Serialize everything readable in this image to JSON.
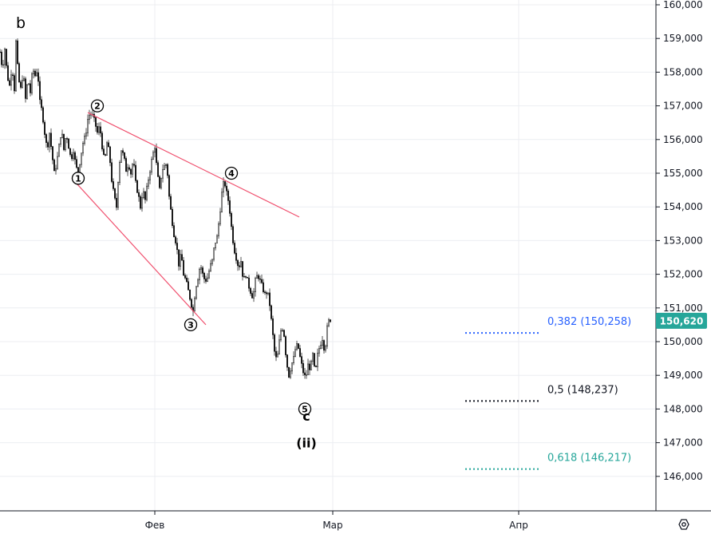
{
  "chart_data": {
    "type": "candlestick",
    "corner_label": "b",
    "y_ticks": [
      "160,000",
      "159,000",
      "158,000",
      "157,000",
      "156,000",
      "155,000",
      "154,000",
      "153,000",
      "152,000",
      "151,000",
      "150,000",
      "149,000",
      "148,000",
      "147,000",
      "146,000"
    ],
    "y_tick_values": [
      160000,
      159000,
      158000,
      157000,
      156000,
      155000,
      154000,
      153000,
      152000,
      151000,
      150000,
      149000,
      148000,
      147000,
      146000
    ],
    "ylim": [
      145000,
      160400
    ],
    "x_ticks": [
      "Фев",
      "Мар",
      "Апр"
    ],
    "grid": true,
    "last_price": {
      "value": 150620,
      "label": "150,620",
      "color": "#26a69a"
    },
    "price_path": [
      [
        0,
        158600
      ],
      [
        3,
        158100
      ],
      [
        6,
        158700
      ],
      [
        9,
        157900
      ],
      [
        12,
        157600
      ],
      [
        15,
        158200
      ],
      [
        18,
        157500
      ],
      [
        20,
        158900
      ],
      [
        23,
        157800
      ],
      [
        26,
        157500
      ],
      [
        29,
        158000
      ],
      [
        32,
        157200
      ],
      [
        35,
        157800
      ],
      [
        38,
        157400
      ],
      [
        41,
        158100
      ],
      [
        44,
        157900
      ],
      [
        47,
        158100
      ],
      [
        50,
        157100
      ],
      [
        53,
        156800
      ],
      [
        56,
        156200
      ],
      [
        59,
        155700
      ],
      [
        62,
        156200
      ],
      [
        65,
        155600
      ],
      [
        68,
        155000
      ],
      [
        71,
        155300
      ],
      [
        74,
        155800
      ],
      [
        77,
        156300
      ],
      [
        80,
        155700
      ],
      [
        83,
        156200
      ],
      [
        86,
        155800
      ],
      [
        89,
        155400
      ],
      [
        92,
        155700
      ],
      [
        95,
        155200
      ],
      [
        98,
        155000
      ],
      [
        101,
        155500
      ],
      [
        104,
        155900
      ],
      [
        107,
        156100
      ],
      [
        110,
        156600
      ],
      [
        113,
        156800
      ],
      [
        116,
        156700
      ],
      [
        119,
        156500
      ],
      [
        122,
        156200
      ],
      [
        125,
        156400
      ],
      [
        128,
        155800
      ],
      [
        131,
        155300
      ],
      [
        134,
        155900
      ],
      [
        137,
        155600
      ],
      [
        140,
        154800
      ],
      [
        143,
        154300
      ],
      [
        146,
        154000
      ],
      [
        149,
        155200
      ],
      [
        152,
        155700
      ],
      [
        155,
        155500
      ],
      [
        158,
        155100
      ],
      [
        161,
        155300
      ],
      [
        164,
        155000
      ],
      [
        167,
        155400
      ],
      [
        170,
        154700
      ],
      [
        173,
        154400
      ],
      [
        176,
        154000
      ],
      [
        179,
        154500
      ],
      [
        182,
        154200
      ],
      [
        185,
        154700
      ],
      [
        188,
        155100
      ],
      [
        191,
        155500
      ],
      [
        194,
        155800
      ],
      [
        197,
        155000
      ],
      [
        200,
        154500
      ],
      [
        203,
        155100
      ],
      [
        206,
        155200
      ],
      [
        209,
        155300
      ],
      [
        212,
        154300
      ],
      [
        215,
        153700
      ],
      [
        218,
        153200
      ],
      [
        221,
        152900
      ],
      [
        224,
        152300
      ],
      [
        227,
        152600
      ],
      [
        230,
        152000
      ],
      [
        233,
        151800
      ],
      [
        236,
        151500
      ],
      [
        239,
        151200
      ],
      [
        242,
        150900
      ],
      [
        245,
        151600
      ],
      [
        248,
        151900
      ],
      [
        251,
        152300
      ],
      [
        254,
        152000
      ],
      [
        257,
        151800
      ],
      [
        260,
        151900
      ],
      [
        263,
        152200
      ],
      [
        266,
        152400
      ],
      [
        269,
        152900
      ],
      [
        272,
        153100
      ],
      [
        275,
        153700
      ],
      [
        278,
        154400
      ],
      [
        281,
        154800
      ],
      [
        284,
        154400
      ],
      [
        287,
        154100
      ],
      [
        290,
        153400
      ],
      [
        293,
        152800
      ],
      [
        296,
        152500
      ],
      [
        299,
        152200
      ],
      [
        302,
        152400
      ],
      [
        305,
        151800
      ],
      [
        308,
        152000
      ],
      [
        311,
        151700
      ],
      [
        314,
        151500
      ],
      [
        317,
        151300
      ],
      [
        320,
        151800
      ],
      [
        323,
        152000
      ],
      [
        326,
        151800
      ],
      [
        329,
        151600
      ],
      [
        332,
        151400
      ],
      [
        335,
        151500
      ],
      [
        338,
        151100
      ],
      [
        341,
        150400
      ],
      [
        344,
        149700
      ],
      [
        347,
        149400
      ],
      [
        350,
        150000
      ],
      [
        353,
        150500
      ],
      [
        356,
        150200
      ],
      [
        359,
        149400
      ],
      [
        362,
        149000
      ],
      [
        365,
        149300
      ],
      [
        368,
        149500
      ],
      [
        371,
        149900
      ],
      [
        374,
        149800
      ],
      [
        377,
        149400
      ],
      [
        380,
        149100
      ],
      [
        383,
        148900
      ],
      [
        386,
        149300
      ],
      [
        389,
        149200
      ],
      [
        392,
        149600
      ],
      [
        395,
        149000
      ],
      [
        398,
        149600
      ],
      [
        401,
        149900
      ],
      [
        404,
        150100
      ],
      [
        407,
        149700
      ],
      [
        410,
        150400
      ],
      [
        413,
        150700
      ],
      [
        415,
        150620
      ]
    ],
    "wave_labels": [
      {
        "label": "①",
        "value": 154850
      },
      {
        "label": "②",
        "value": 157000
      },
      {
        "label": "③",
        "value": 150500
      },
      {
        "label": "④",
        "value": 155000
      },
      {
        "label": "⑤",
        "value": 148000
      }
    ],
    "degree_labels": [
      {
        "label": "c",
        "value": 147800
      },
      {
        "label": "(ii)",
        "value": 147000
      }
    ],
    "trendlines": [
      {
        "from": [
          110,
          156800
        ],
        "to": [
          375,
          153700
        ],
        "color": "#f0506e"
      },
      {
        "from": [
          90,
          154850
        ],
        "to": [
          258,
          150500
        ],
        "color": "#f0506e"
      }
    ],
    "fib_levels": [
      {
        "ratio": "0,382",
        "value": 150258,
        "label": "0,382 (150,258)",
        "color": "#2962ff",
        "label_color": "#2962ff"
      },
      {
        "ratio": "0,5",
        "value": 148237,
        "label": "0,5 (148,237)",
        "color": "#131722",
        "label_color": "#131722"
      },
      {
        "ratio": "0,618",
        "value": 146217,
        "label": "0,618 (146,217)",
        "color": "#26a69a",
        "label_color": "#26a69a"
      }
    ]
  }
}
